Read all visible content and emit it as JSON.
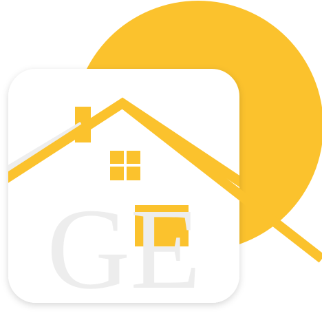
{
  "logo": {
    "monogram": "GE",
    "colors": {
      "accent": "#FBC22D",
      "tile": "#FFFFFF",
      "roof_shadow": "#EEEEEE",
      "letter": "#EDEDED",
      "background": "#FFFFFF"
    }
  }
}
